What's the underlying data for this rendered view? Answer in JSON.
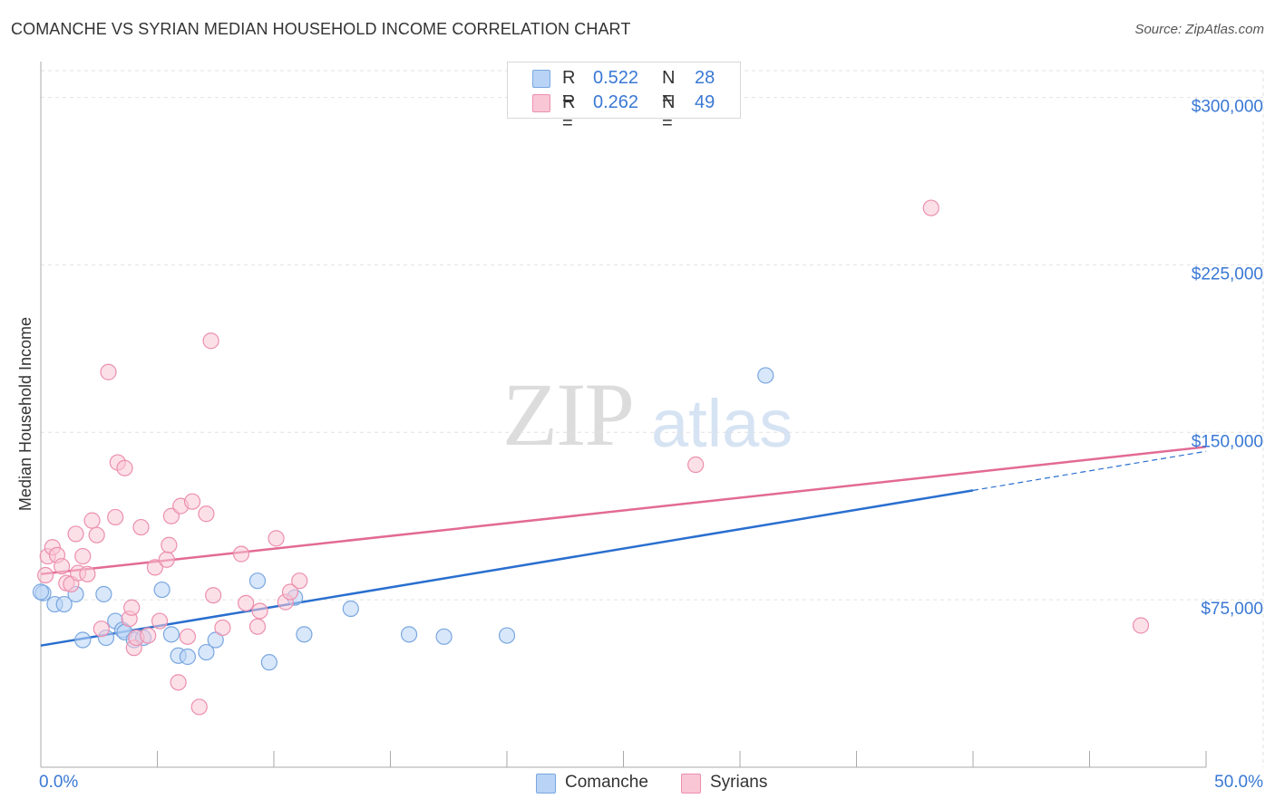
{
  "header": {
    "title": "COMANCHE VS SYRIAN MEDIAN HOUSEHOLD INCOME CORRELATION CHART",
    "source": "Source: ZipAtlas.com"
  },
  "watermark": {
    "zip": "ZIP",
    "atlas": "atlas"
  },
  "legend": {
    "series1": {
      "r_label": "R =",
      "r_value": "0.522",
      "n_label": "N =",
      "n_value": "28"
    },
    "series2": {
      "r_label": "R =",
      "r_value": "0.262",
      "n_label": "N =",
      "n_value": "49"
    }
  },
  "colors": {
    "comanche_fill": "#b8d3f5",
    "comanche_stroke": "#7aa7e0",
    "comanche_line": "#2a6fcf",
    "syrians_fill": "#f9c6d6",
    "syrians_stroke": "#ec8fae",
    "syrians_line": "#e26a94",
    "axis_label": "#3a78d4",
    "grid": "#e2e2e2"
  },
  "chart_data": {
    "type": "scatter",
    "title": "COMANCHE VS SYRIAN MEDIAN HOUSEHOLD INCOME CORRELATION CHART",
    "xlabel": "",
    "ylabel": "Median Household Income",
    "xlim": [
      0,
      50
    ],
    "ylim": [
      0,
      312000
    ],
    "x_tick_labels": [
      "0.0%",
      "50.0%"
    ],
    "y_ticks": [
      75000,
      150000,
      225000,
      300000
    ],
    "y_tick_labels": [
      "$75,000",
      "$150,000",
      "$225,000",
      "$300,000"
    ],
    "grid": true,
    "legend_position": "top-center",
    "series": [
      {
        "name": "Comanche",
        "r": 0.522,
        "n": 28,
        "trend": {
          "start": [
            0,
            54500
          ],
          "end": [
            40,
            124000
          ],
          "dashed_end": [
            50,
            141500
          ]
        },
        "points": [
          [
            0.1,
            78000
          ],
          [
            0.6,
            73000
          ],
          [
            1.0,
            73000
          ],
          [
            1.5,
            77500
          ],
          [
            1.8,
            57000
          ],
          [
            2.7,
            77500
          ],
          [
            2.8,
            58000
          ],
          [
            3.2,
            65500
          ],
          [
            3.5,
            61500
          ],
          [
            3.6,
            60500
          ],
          [
            4.0,
            57000
          ],
          [
            4.4,
            58000
          ],
          [
            5.2,
            79500
          ],
          [
            5.6,
            59500
          ],
          [
            5.9,
            50000
          ],
          [
            6.3,
            49500
          ],
          [
            7.1,
            51500
          ],
          [
            7.5,
            57000
          ],
          [
            9.3,
            83500
          ],
          [
            9.8,
            47000
          ],
          [
            10.9,
            76000
          ],
          [
            11.3,
            59500
          ],
          [
            13.3,
            71000
          ],
          [
            15.8,
            59500
          ],
          [
            17.3,
            58500
          ],
          [
            20.0,
            59000
          ],
          [
            31.1,
            175500
          ],
          [
            0.0,
            78500
          ]
        ]
      },
      {
        "name": "Syrians",
        "r": 0.262,
        "n": 49,
        "trend": {
          "start": [
            0,
            86500
          ],
          "end": [
            50,
            143500
          ]
        },
        "points": [
          [
            0.2,
            86000
          ],
          [
            0.3,
            94500
          ],
          [
            0.5,
            98500
          ],
          [
            0.7,
            95000
          ],
          [
            0.9,
            90000
          ],
          [
            1.1,
            82500
          ],
          [
            1.3,
            82000
          ],
          [
            1.5,
            104500
          ],
          [
            1.6,
            87000
          ],
          [
            1.8,
            94500
          ],
          [
            2.0,
            86500
          ],
          [
            2.2,
            110500
          ],
          [
            2.4,
            104000
          ],
          [
            2.6,
            62000
          ],
          [
            2.9,
            177000
          ],
          [
            3.2,
            112000
          ],
          [
            3.3,
            136500
          ],
          [
            3.6,
            134000
          ],
          [
            3.8,
            66500
          ],
          [
            3.9,
            71500
          ],
          [
            4.0,
            53500
          ],
          [
            4.1,
            58000
          ],
          [
            4.3,
            107500
          ],
          [
            4.6,
            59000
          ],
          [
            4.9,
            89500
          ],
          [
            5.1,
            65500
          ],
          [
            5.4,
            93000
          ],
          [
            5.5,
            99500
          ],
          [
            5.6,
            112500
          ],
          [
            5.9,
            38000
          ],
          [
            6.0,
            117000
          ],
          [
            6.3,
            58500
          ],
          [
            6.5,
            119000
          ],
          [
            6.8,
            27000
          ],
          [
            7.1,
            113500
          ],
          [
            7.3,
            191000
          ],
          [
            7.4,
            77000
          ],
          [
            7.8,
            62500
          ],
          [
            8.6,
            95500
          ],
          [
            8.8,
            73500
          ],
          [
            9.3,
            63000
          ],
          [
            9.4,
            70000
          ],
          [
            10.1,
            102500
          ],
          [
            10.5,
            74000
          ],
          [
            10.7,
            78500
          ],
          [
            11.1,
            83500
          ],
          [
            28.1,
            135500
          ],
          [
            38.2,
            250500
          ],
          [
            47.2,
            63500
          ]
        ]
      }
    ]
  }
}
